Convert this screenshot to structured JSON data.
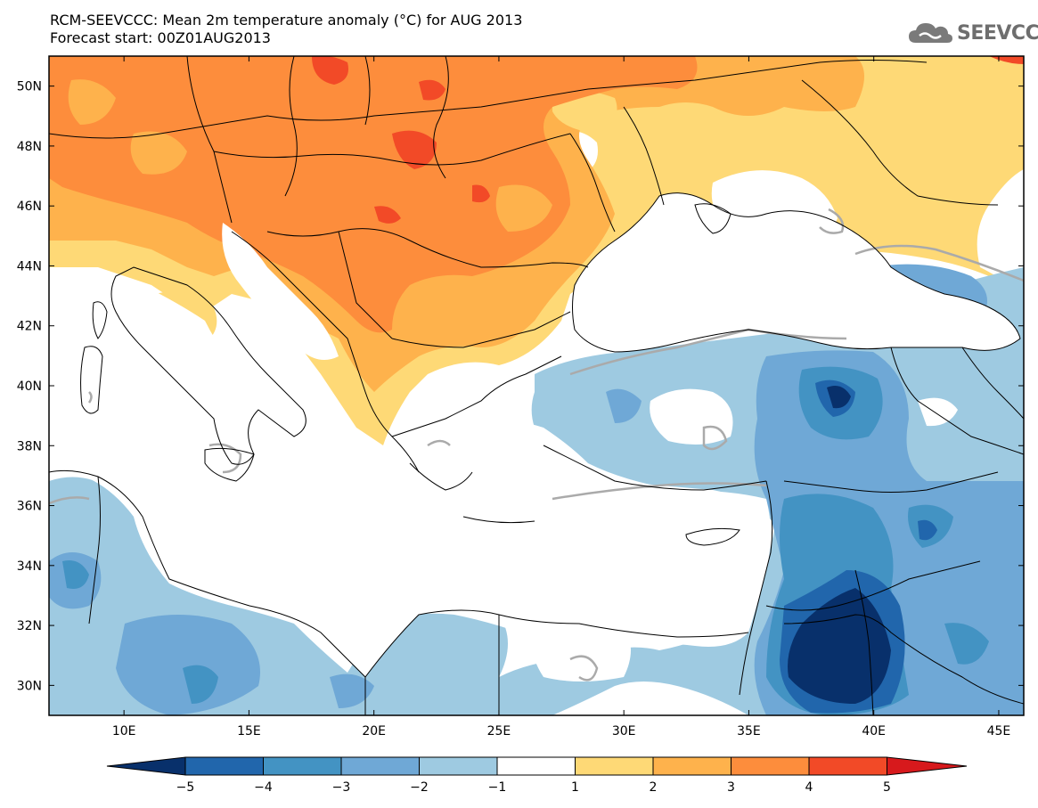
{
  "title": {
    "line1": "RCM-SEEVCCC: Mean 2m temperature anomaly (°C) for AUG 2013",
    "line2": "Forecast start: 00Z01AUG2013"
  },
  "logo": {
    "text": "SEEVCCC",
    "icon": "cloud-icon"
  },
  "map": {
    "lon_range": [
      7,
      46
    ],
    "lat_range": [
      29,
      51
    ],
    "lat_ticks": [
      "30N",
      "32N",
      "34N",
      "36N",
      "38N",
      "40N",
      "42N",
      "44N",
      "46N",
      "48N",
      "50N"
    ],
    "lon_ticks": [
      "10E",
      "15E",
      "20E",
      "25E",
      "30E",
      "35E",
      "40E",
      "45E"
    ]
  },
  "colorbar": {
    "labels": [
      "−5",
      "−4",
      "−3",
      "−2",
      "−1",
      "1",
      "2",
      "3",
      "4",
      "5"
    ],
    "colors": {
      "below": "#08306b",
      "c1": "#2166ac",
      "c2": "#4393c3",
      "c3": "#6fa8d6",
      "c4": "#9ecae1",
      "c5": "#ffffff",
      "c6": "#fed976",
      "c7": "#feb24c",
      "c8": "#fd8d3c",
      "c9": "#f24a27",
      "above": "#d7191c"
    }
  }
}
